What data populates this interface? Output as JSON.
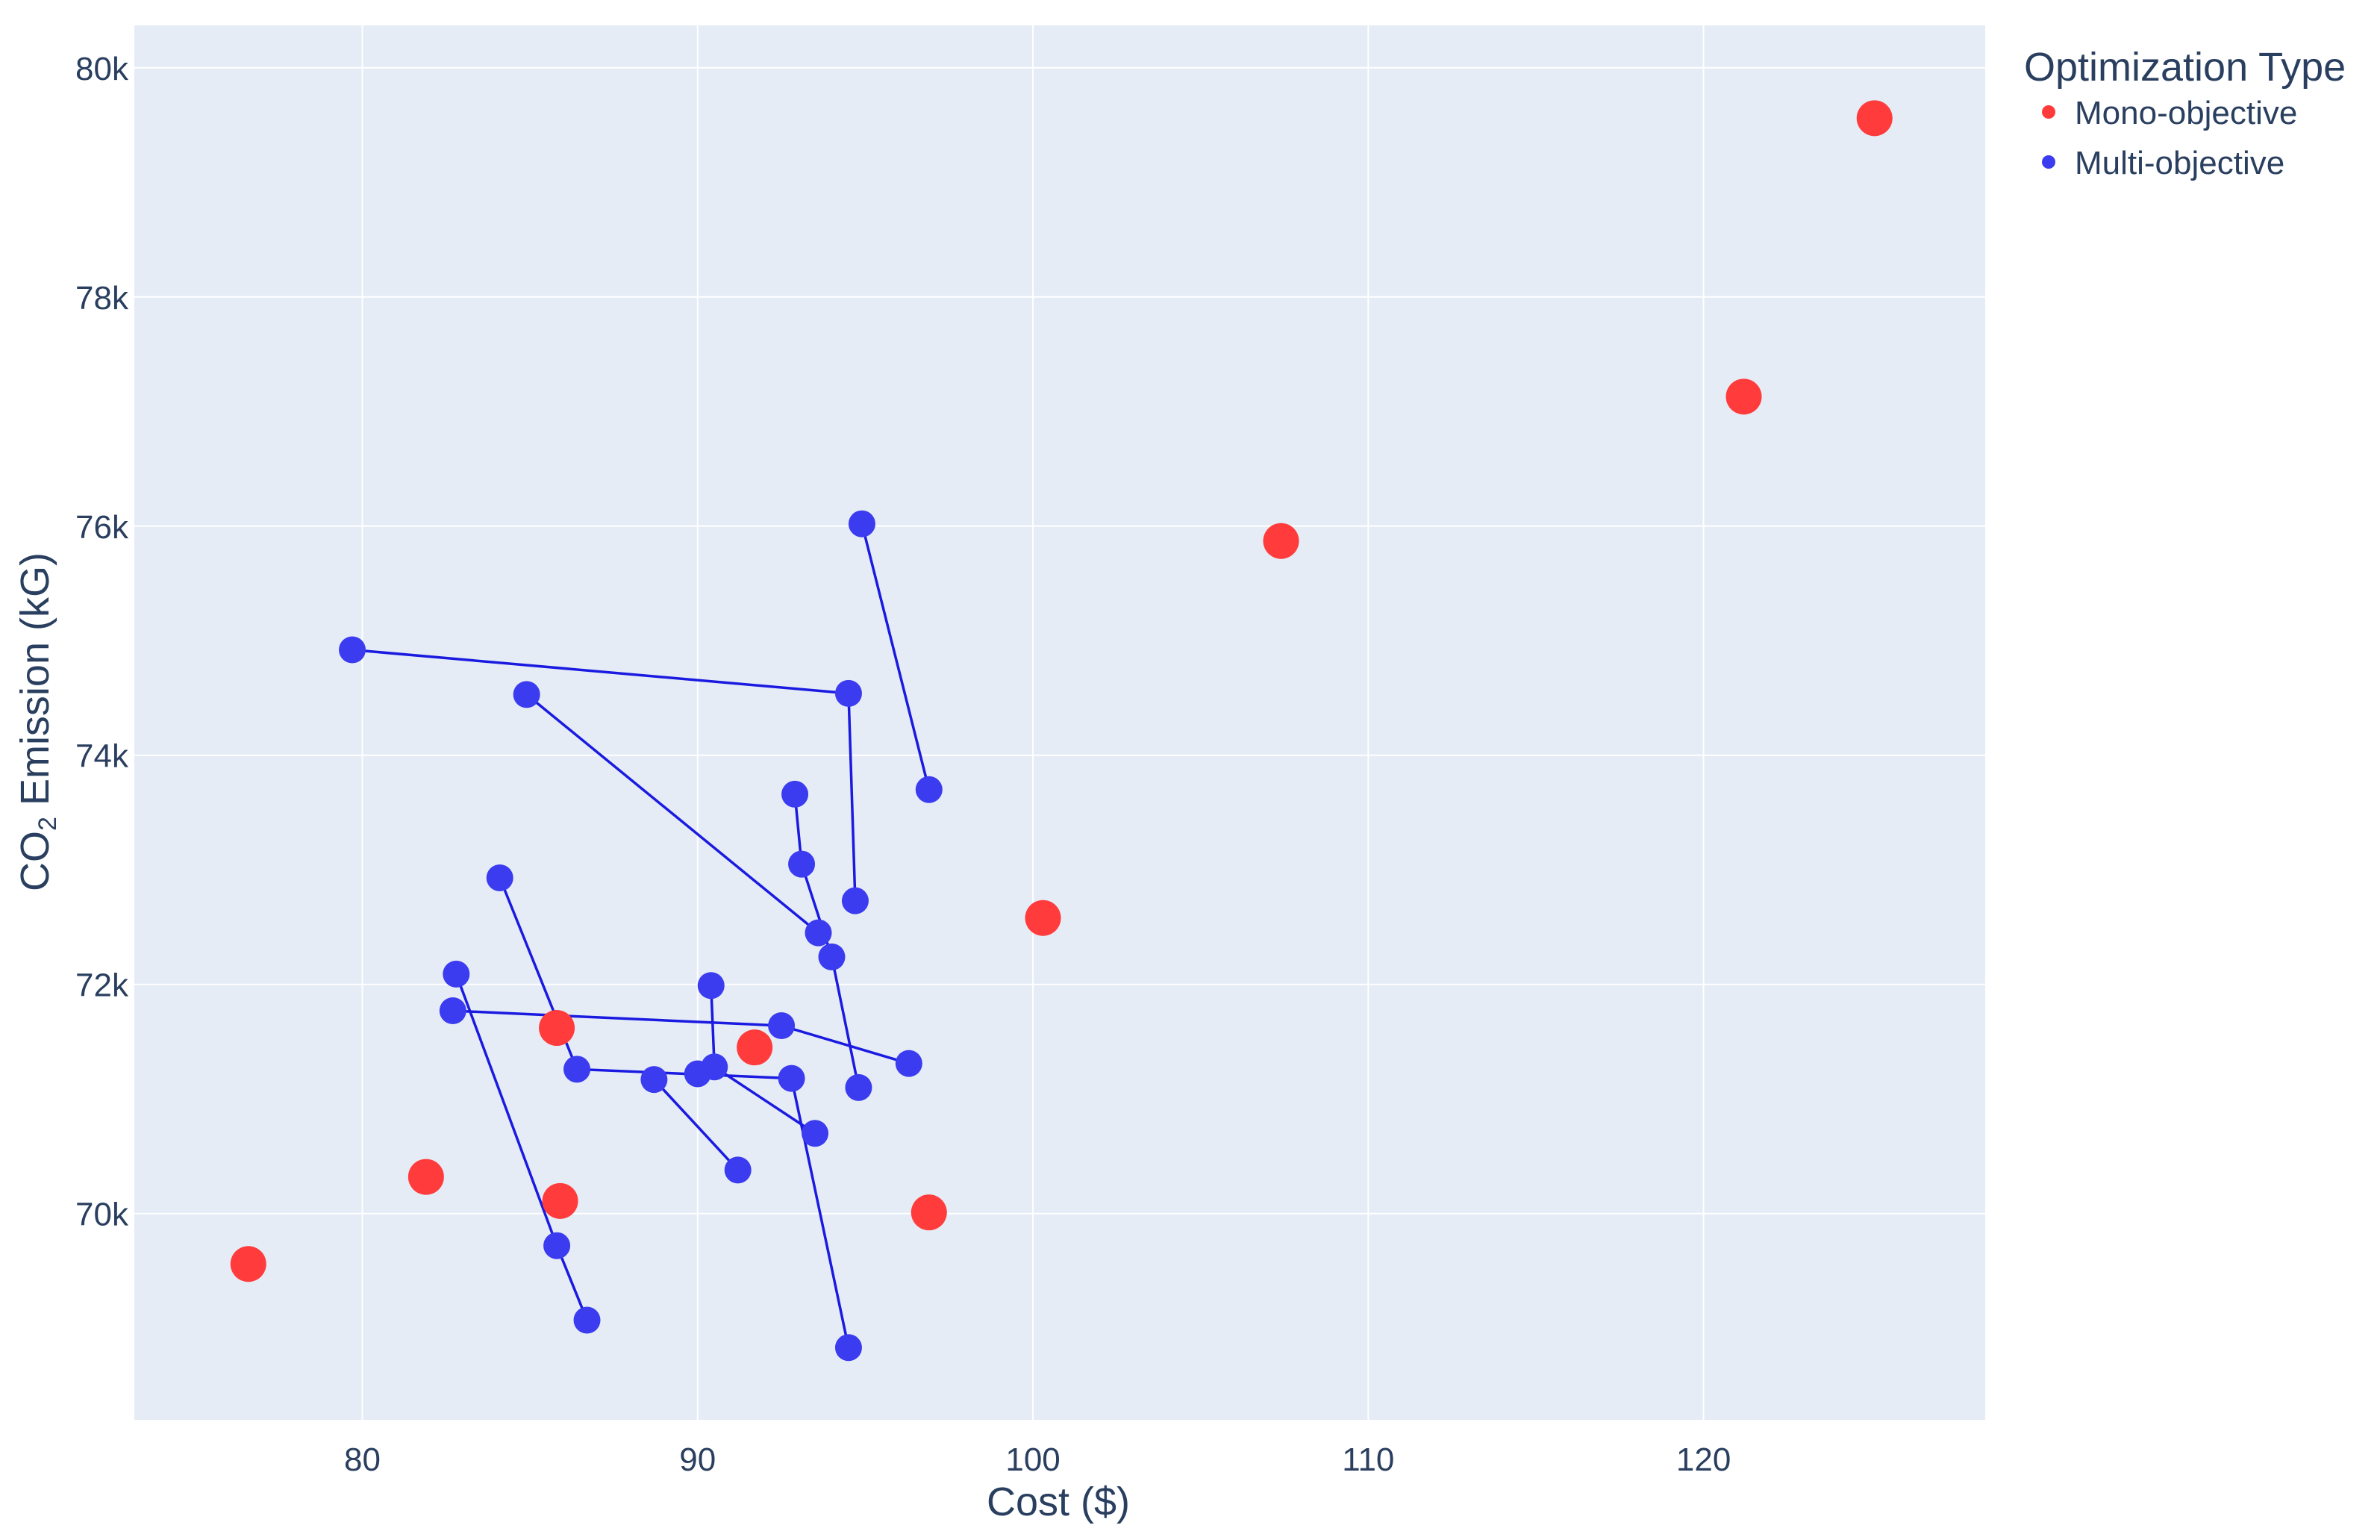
{
  "chart_data": {
    "type": "scatter",
    "title": "",
    "xlabel": "Cost ($)",
    "ylabel_main": "CO",
    "ylabel_sub": "2",
    "ylabel_rest": " Emission (kG)",
    "xlim": [
      73.2,
      128.4
    ],
    "ylim": [
      68200,
      80370
    ],
    "x_ticks": [
      80,
      90,
      100,
      110,
      120
    ],
    "x_tick_labels": [
      "80",
      "90",
      "100",
      "110",
      "120"
    ],
    "y_ticks": [
      70000,
      72000,
      74000,
      76000,
      78000,
      80000
    ],
    "y_tick_labels": [
      "70k",
      "72k",
      "74k",
      "76k",
      "78k",
      "80k"
    ],
    "grid": true,
    "plot_bg": "#e5ecf6",
    "grid_color": "#ffffff",
    "legend": {
      "title": "Optimization Type",
      "placement": "top-right-outside",
      "entries": [
        "Mono-objective",
        "Multi-objective"
      ]
    },
    "series": [
      {
        "name": "Mono-objective",
        "color": "#ff3b3b",
        "mode": "markers",
        "points": [
          [
            76.6,
            69560
          ],
          [
            81.9,
            70320
          ],
          [
            85.8,
            71620
          ],
          [
            85.9,
            70110
          ],
          [
            91.7,
            71450
          ],
          [
            96.9,
            70010
          ],
          [
            100.3,
            72580
          ],
          [
            107.4,
            75870
          ],
          [
            121.2,
            77130
          ],
          [
            125.1,
            79560
          ]
        ]
      },
      {
        "name": "Multi-objective",
        "color": "#3b3bf0",
        "line_color": "#1a1ae0",
        "mode": "markers+lines",
        "segments": [
          [
            [
              79.7,
              74920
            ],
            [
              94.5,
              74540
            ],
            [
              94.7,
              72730
            ]
          ],
          [
            [
              84.9,
              74530
            ],
            [
              93.6,
              72450
            ]
          ],
          [
            [
              94.9,
              76020
            ],
            [
              96.9,
              73700
            ]
          ],
          [
            [
              92.9,
              73660
            ],
            [
              93.1,
              73050
            ],
            [
              94.0,
              72240
            ],
            [
              94.8,
              71100
            ]
          ],
          [
            [
              84.1,
              72930
            ],
            [
              86.4,
              71260
            ],
            [
              92.8,
              71180
            ],
            [
              94.5,
              68830
            ]
          ],
          [
            [
              82.8,
              72090
            ],
            [
              85.8,
              69720
            ],
            [
              86.7,
              69070
            ]
          ],
          [
            [
              82.7,
              71770
            ],
            [
              92.5,
              71640
            ],
            [
              96.3,
              71310
            ]
          ],
          [
            [
              90.4,
              71990
            ],
            [
              90.5,
              71280
            ],
            [
              93.5,
              70700
            ]
          ],
          [
            [
              88.7,
              71170
            ],
            [
              91.2,
              70380
            ]
          ],
          [
            [
              90.0,
              71220
            ]
          ]
        ]
      }
    ]
  }
}
